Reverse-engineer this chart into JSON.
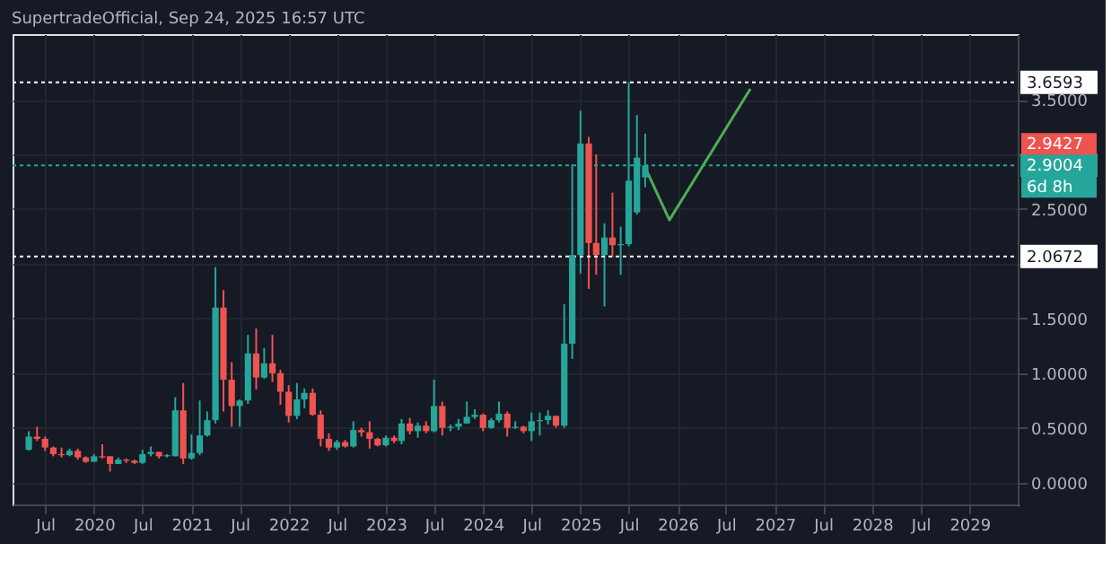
{
  "chart_data": {
    "type": "candlestick",
    "title": "SupertradeOfficial, Sep 24, 2025 16:57 UTC",
    "x": [
      "2019-05",
      "2019-06",
      "2019-07",
      "2019-08",
      "2019-09",
      "2019-10",
      "2019-11",
      "2019-12",
      "2020-01",
      "2020-02",
      "2020-03",
      "2020-04",
      "2020-05",
      "2020-06",
      "2020-07",
      "2020-08",
      "2020-09",
      "2020-10",
      "2020-11",
      "2020-12",
      "2021-01",
      "2021-02",
      "2021-03",
      "2021-04",
      "2021-05",
      "2021-06",
      "2021-07",
      "2021-08",
      "2021-09",
      "2021-10",
      "2021-11",
      "2021-12",
      "2022-01",
      "2022-02",
      "2022-03",
      "2022-04",
      "2022-05",
      "2022-06",
      "2022-07",
      "2022-08",
      "2022-09",
      "2022-10",
      "2022-11",
      "2022-12",
      "2023-01",
      "2023-02",
      "2023-03",
      "2023-04",
      "2023-05",
      "2023-06",
      "2023-07",
      "2023-08",
      "2023-09",
      "2023-10",
      "2023-11",
      "2023-12",
      "2024-01",
      "2024-02",
      "2024-03",
      "2024-04",
      "2024-05",
      "2024-06",
      "2024-07",
      "2024-08",
      "2024-09",
      "2024-10",
      "2024-11",
      "2024-12",
      "2025-01",
      "2025-02",
      "2025-03",
      "2025-04",
      "2025-05",
      "2025-06",
      "2025-07",
      "2025-08",
      "2025-09"
    ],
    "ohlc": [
      [
        0.3,
        0.47,
        0.29,
        0.42
      ],
      [
        0.42,
        0.51,
        0.38,
        0.4
      ],
      [
        0.4,
        0.42,
        0.29,
        0.32
      ],
      [
        0.32,
        0.33,
        0.24,
        0.26
      ],
      [
        0.26,
        0.32,
        0.23,
        0.25
      ],
      [
        0.25,
        0.31,
        0.24,
        0.29
      ],
      [
        0.29,
        0.31,
        0.21,
        0.23
      ],
      [
        0.23,
        0.24,
        0.18,
        0.19
      ],
      [
        0.19,
        0.26,
        0.19,
        0.24
      ],
      [
        0.24,
        0.35,
        0.22,
        0.23
      ],
      [
        0.24,
        0.24,
        0.1,
        0.17
      ],
      [
        0.17,
        0.23,
        0.17,
        0.21
      ],
      [
        0.21,
        0.22,
        0.18,
        0.2
      ],
      [
        0.2,
        0.21,
        0.17,
        0.18
      ],
      [
        0.18,
        0.3,
        0.17,
        0.26
      ],
      [
        0.26,
        0.33,
        0.24,
        0.28
      ],
      [
        0.28,
        0.28,
        0.22,
        0.24
      ],
      [
        0.24,
        0.26,
        0.23,
        0.25
      ],
      [
        0.24,
        0.78,
        0.24,
        0.66
      ],
      [
        0.66,
        0.91,
        0.17,
        0.22
      ],
      [
        0.22,
        0.44,
        0.21,
        0.27
      ],
      [
        0.27,
        0.75,
        0.25,
        0.43
      ],
      [
        0.43,
        0.65,
        0.42,
        0.57
      ],
      [
        0.57,
        1.97,
        0.54,
        1.6
      ],
      [
        1.6,
        1.76,
        0.65,
        0.94
      ],
      [
        0.94,
        1.1,
        0.51,
        0.7
      ],
      [
        0.7,
        0.76,
        0.51,
        0.75
      ],
      [
        0.75,
        1.35,
        0.72,
        1.18
      ],
      [
        1.18,
        1.41,
        0.85,
        0.96
      ],
      [
        0.96,
        1.23,
        0.95,
        1.09
      ],
      [
        1.09,
        1.35,
        0.92,
        1.0
      ],
      [
        1.0,
        1.03,
        0.71,
        0.83
      ],
      [
        0.83,
        0.89,
        0.55,
        0.61
      ],
      [
        0.61,
        0.91,
        0.58,
        0.76
      ],
      [
        0.76,
        0.86,
        0.68,
        0.82
      ],
      [
        0.82,
        0.86,
        0.61,
        0.62
      ],
      [
        0.62,
        0.66,
        0.33,
        0.4
      ],
      [
        0.4,
        0.45,
        0.29,
        0.32
      ],
      [
        0.32,
        0.39,
        0.3,
        0.37
      ],
      [
        0.37,
        0.39,
        0.32,
        0.33
      ],
      [
        0.33,
        0.56,
        0.32,
        0.48
      ],
      [
        0.48,
        0.5,
        0.42,
        0.46
      ],
      [
        0.46,
        0.56,
        0.31,
        0.4
      ],
      [
        0.4,
        0.41,
        0.33,
        0.34
      ],
      [
        0.34,
        0.43,
        0.33,
        0.41
      ],
      [
        0.41,
        0.43,
        0.36,
        0.38
      ],
      [
        0.38,
        0.58,
        0.35,
        0.54
      ],
      [
        0.54,
        0.59,
        0.44,
        0.47
      ],
      [
        0.47,
        0.55,
        0.41,
        0.52
      ],
      [
        0.52,
        0.56,
        0.45,
        0.47
      ],
      [
        0.47,
        0.94,
        0.46,
        0.7
      ],
      [
        0.7,
        0.74,
        0.43,
        0.5
      ],
      [
        0.5,
        0.53,
        0.47,
        0.51
      ],
      [
        0.51,
        0.58,
        0.48,
        0.54
      ],
      [
        0.54,
        0.74,
        0.54,
        0.6
      ],
      [
        0.6,
        0.67,
        0.58,
        0.62
      ],
      [
        0.62,
        0.63,
        0.47,
        0.5
      ],
      [
        0.5,
        0.59,
        0.49,
        0.57
      ],
      [
        0.57,
        0.74,
        0.55,
        0.63
      ],
      [
        0.63,
        0.65,
        0.42,
        0.5
      ],
      [
        0.5,
        0.56,
        0.49,
        0.51
      ],
      [
        0.51,
        0.52,
        0.45,
        0.47
      ],
      [
        0.47,
        0.64,
        0.38,
        0.56
      ],
      [
        0.56,
        0.64,
        0.43,
        0.57
      ],
      [
        0.57,
        0.66,
        0.53,
        0.61
      ],
      [
        0.61,
        0.61,
        0.5,
        0.52
      ],
      [
        0.52,
        1.63,
        0.5,
        1.27
      ],
      [
        1.27,
        2.91,
        1.13,
        2.08
      ],
      [
        2.08,
        3.4,
        1.91,
        3.1
      ],
      [
        3.1,
        3.16,
        1.77,
        2.19
      ],
      [
        2.19,
        3.0,
        1.9,
        2.08
      ],
      [
        2.08,
        2.37,
        1.61,
        2.24
      ],
      [
        2.24,
        2.65,
        2.06,
        2.17
      ],
      [
        2.17,
        2.34,
        1.9,
        2.18
      ],
      [
        2.18,
        3.66,
        2.16,
        2.76
      ],
      [
        2.47,
        3.36,
        2.45,
        2.97
      ],
      [
        2.79,
        3.19,
        2.7,
        2.9
      ]
    ],
    "series": [
      {
        "type": "line",
        "color": "#4caf50",
        "x": [
          "2025-09",
          "2025-12",
          "2026-10"
        ],
        "values": [
          2.88,
          2.4,
          3.6
        ]
      }
    ],
    "xlim": [
      "2019-03",
      "2029-07"
    ],
    "xticks": [
      {
        "value": "2019-07",
        "label": "Jul"
      },
      {
        "value": "2020-01",
        "label": "2020"
      },
      {
        "value": "2020-07",
        "label": "Jul"
      },
      {
        "value": "2021-01",
        "label": "2021"
      },
      {
        "value": "2021-07",
        "label": "Jul"
      },
      {
        "value": "2022-01",
        "label": "2022"
      },
      {
        "value": "2022-07",
        "label": "Jul"
      },
      {
        "value": "2023-01",
        "label": "2023"
      },
      {
        "value": "2023-07",
        "label": "Jul"
      },
      {
        "value": "2024-01",
        "label": "2024"
      },
      {
        "value": "2024-07",
        "label": "Jul"
      },
      {
        "value": "2025-01",
        "label": "2025"
      },
      {
        "value": "2025-07",
        "label": "Jul"
      },
      {
        "value": "2026-01",
        "label": "2026"
      },
      {
        "value": "2026-07",
        "label": "Jul"
      },
      {
        "value": "2027-01",
        "label": "2027"
      },
      {
        "value": "2027-07",
        "label": "Jul"
      },
      {
        "value": "2028-01",
        "label": "2028"
      },
      {
        "value": "2028-07",
        "label": "Jul"
      },
      {
        "value": "2029-01",
        "label": "2029"
      }
    ],
    "ylim": [
      -0.2,
      4.1
    ],
    "yticks": [
      {
        "value": 0,
        "label": "0.0000"
      },
      {
        "value": 0.5,
        "label": "0.5000"
      },
      {
        "value": 1,
        "label": "1.0000"
      },
      {
        "value": 1.5,
        "label": "1.5000"
      },
      {
        "value": 2,
        "label": null
      },
      {
        "value": 2.5,
        "label": "2.5000"
      },
      {
        "value": 3,
        "label": null
      },
      {
        "value": 3.5,
        "label": "3.5000"
      }
    ],
    "ref_lines": [
      {
        "axis": "y",
        "value": 3.6593,
        "label": "3.6593",
        "color": "#ffffff",
        "line_style": "dotted"
      },
      {
        "axis": "y",
        "value": 2.0672,
        "label": "2.0672",
        "color": "#ffffff",
        "line_style": "dotted"
      },
      {
        "axis": "y",
        "value": 2.9004,
        "label": "2.9004",
        "color": "#26a69a",
        "line_style": "dotted"
      }
    ],
    "annotations": [
      "2.9427",
      "6d 8h"
    ],
    "grid": true
  }
}
